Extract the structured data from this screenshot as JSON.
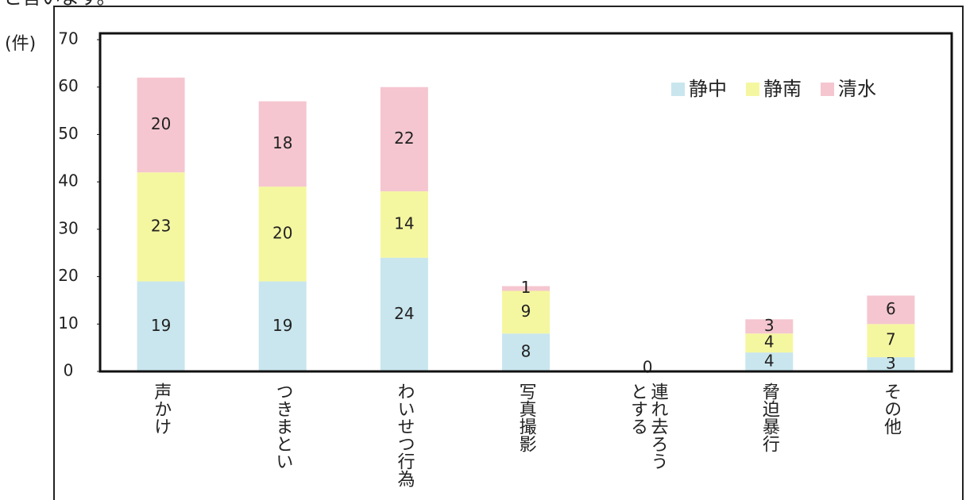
{
  "header_text": "と言います。",
  "chart_data": {
    "type": "stacked_bar",
    "y_label": "(件)",
    "categories": [
      "声かけ",
      "つきまとい",
      "わいせつ行為",
      "写真撮影",
      "連れ去ろう\nとする",
      "脅迫暴行",
      "その他"
    ],
    "series": [
      {
        "name": "静中",
        "color": "#c9e6ee",
        "values": [
          19,
          19,
          24,
          8,
          0,
          4,
          3
        ]
      },
      {
        "name": "静南",
        "color": "#f5f7a0",
        "values": [
          23,
          20,
          14,
          9,
          0,
          4,
          7
        ]
      },
      {
        "name": "清水",
        "color": "#f5c6d0",
        "values": [
          20,
          18,
          22,
          1,
          0,
          3,
          6
        ]
      }
    ],
    "ylim": [
      0,
      70
    ],
    "yticks": [
      0,
      10,
      20,
      30,
      40,
      50,
      60,
      70
    ],
    "legend": "upper right"
  }
}
